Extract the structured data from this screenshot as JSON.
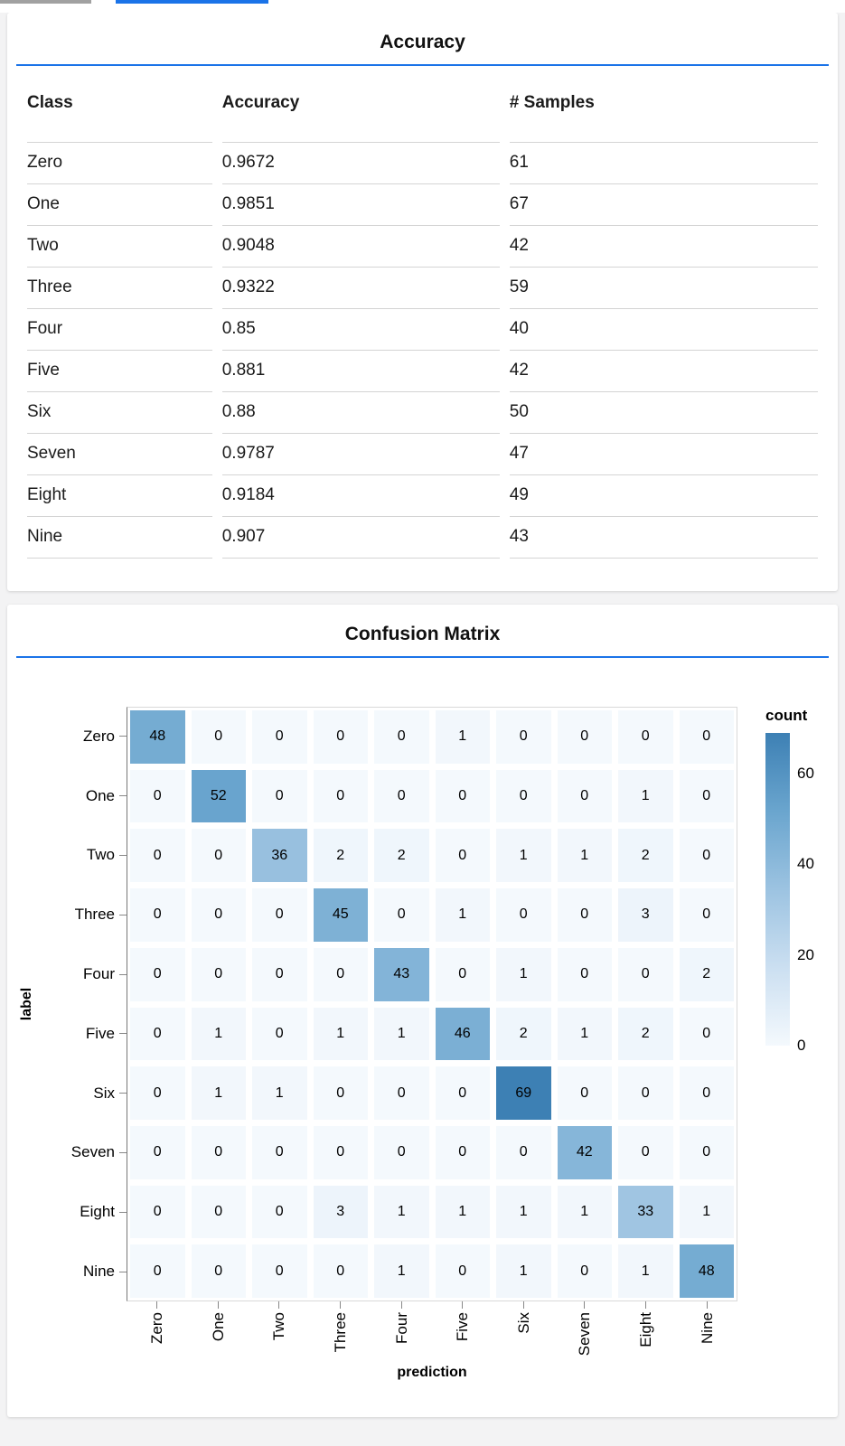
{
  "page": {
    "accent_blue": "#1a73e8",
    "inactive_bar_gray": "#a1a1a1",
    "background": "#f3f3f4"
  },
  "chart_data": [
    {
      "type": "table",
      "title": "Accuracy",
      "columns": [
        "Class",
        "Accuracy",
        "# Samples"
      ],
      "rows": [
        [
          "Zero",
          "0.9672",
          "61"
        ],
        [
          "One",
          "0.9851",
          "67"
        ],
        [
          "Two",
          "0.9048",
          "42"
        ],
        [
          "Three",
          "0.9322",
          "59"
        ],
        [
          "Four",
          "0.85",
          "40"
        ],
        [
          "Five",
          "0.881",
          "42"
        ],
        [
          "Six",
          "0.88",
          "50"
        ],
        [
          "Seven",
          "0.9787",
          "47"
        ],
        [
          "Eight",
          "0.9184",
          "49"
        ],
        [
          "Nine",
          "0.907",
          "43"
        ]
      ]
    },
    {
      "type": "heatmap",
      "title": "Confusion Matrix",
      "xlabel": "prediction",
      "ylabel": "label",
      "x_categories": [
        "Zero",
        "One",
        "Two",
        "Three",
        "Four",
        "Five",
        "Six",
        "Seven",
        "Eight",
        "Nine"
      ],
      "y_categories": [
        "Zero",
        "One",
        "Two",
        "Three",
        "Four",
        "Five",
        "Six",
        "Seven",
        "Eight",
        "Nine"
      ],
      "matrix": [
        [
          48,
          0,
          0,
          0,
          0,
          1,
          0,
          0,
          0,
          0
        ],
        [
          0,
          52,
          0,
          0,
          0,
          0,
          0,
          0,
          1,
          0
        ],
        [
          0,
          0,
          36,
          2,
          2,
          0,
          1,
          1,
          2,
          0
        ],
        [
          0,
          0,
          0,
          45,
          0,
          1,
          0,
          0,
          3,
          0
        ],
        [
          0,
          0,
          0,
          0,
          43,
          0,
          1,
          0,
          0,
          2
        ],
        [
          0,
          1,
          0,
          1,
          1,
          46,
          2,
          1,
          2,
          0
        ],
        [
          0,
          1,
          1,
          0,
          0,
          0,
          69,
          0,
          0,
          0
        ],
        [
          0,
          0,
          0,
          0,
          0,
          0,
          0,
          42,
          0,
          0
        ],
        [
          0,
          0,
          0,
          3,
          1,
          1,
          1,
          1,
          33,
          1
        ],
        [
          0,
          0,
          0,
          0,
          1,
          0,
          1,
          0,
          1,
          48
        ]
      ],
      "legend": {
        "title": "count",
        "ticks": [
          60,
          40,
          20,
          0
        ],
        "domain": [
          0,
          69
        ],
        "gradient_stops": [
          [
            0.0,
            "#f4f9fd"
          ],
          [
            0.25,
            "#cbdff1"
          ],
          [
            0.5,
            "#9cc3e1"
          ],
          [
            0.75,
            "#6aa5ce"
          ],
          [
            1.0,
            "#3d80b4"
          ]
        ]
      },
      "layout": {
        "grid": false,
        "legend_position": "right",
        "x_tick_rotation": -90
      }
    }
  ]
}
